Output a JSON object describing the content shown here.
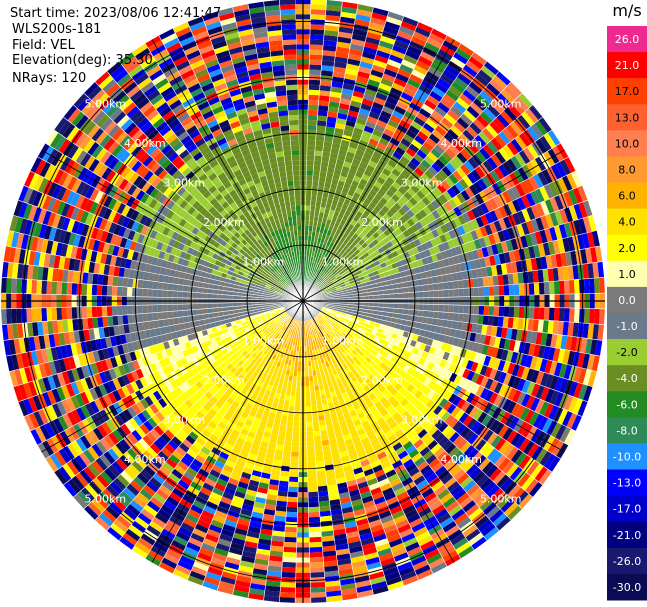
{
  "header": {
    "start_time": "Start time: 2023/08/06 12:41:47",
    "instrument": "WLS200s-181",
    "field": "Field: VEL",
    "elevation": "Elevation(deg): 35.30",
    "nrays": "NRays: 120"
  },
  "chart_data": {
    "type": "heatmap",
    "projection": "polar-ppi",
    "field": "VEL",
    "units": "m/s",
    "n_rays": 120,
    "range_rings_km": [
      1.0,
      2.0,
      3.0,
      4.0,
      5.0
    ],
    "range_ring_labels": [
      "1.00km",
      "2.00km",
      "3.00km",
      "4.00km",
      "5.00km"
    ],
    "spokes_deg": [
      0,
      30,
      60,
      90,
      120,
      150,
      180,
      210,
      240,
      270,
      300,
      330
    ],
    "max_range_km": 5.4,
    "velocity_pattern": {
      "north_sector_m_s": -3.0,
      "south_sector_m_s": 5.0,
      "clean_data_range_km": [
        0.3,
        3.2
      ]
    },
    "colorbar": {
      "label": "m/s",
      "ticks": [
        "26.0",
        "21.0",
        "17.0",
        "13.0",
        "10.0",
        "8.0",
        "6.0",
        "4.0",
        "2.0",
        "1.0",
        "0.0",
        "-1.0",
        "-2.0",
        "-4.0",
        "-6.0",
        "-8.0",
        "-10.0",
        "-13.0",
        "-17.0",
        "-21.0",
        "-26.0",
        "-30.0"
      ],
      "colors": [
        "#ee2a90",
        "#ff0000",
        "#ff4000",
        "#ff6030",
        "#ff7f50",
        "#ff9a30",
        "#ffb300",
        "#ffe100",
        "#ffff00",
        "#ffffb0",
        "#7a7a7a",
        "#6a7a8a",
        "#9acd32",
        "#6b8e23",
        "#228b22",
        "#2e8b57",
        "#1e90ff",
        "#0000ff",
        "#0000cd",
        "#000080",
        "#191970",
        "#0b0b55"
      ]
    }
  }
}
